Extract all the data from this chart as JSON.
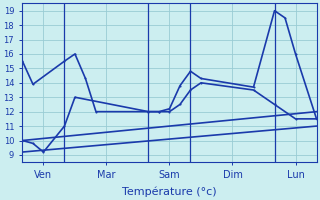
{
  "background_color": "#cceef0",
  "grid_color": "#99ccd4",
  "line_color": "#1a3aab",
  "xlabel": "Température (°c)",
  "ylim": [
    8.5,
    19.5
  ],
  "yticks": [
    9,
    10,
    11,
    12,
    13,
    14,
    15,
    16,
    17,
    18,
    19
  ],
  "xlim": [
    0,
    28
  ],
  "day_lines": [
    4,
    12,
    16,
    24
  ],
  "xtick_positions": [
    2,
    8,
    14,
    20,
    26
  ],
  "xtick_labels": [
    "Ven",
    "Mar",
    "Sam",
    "Dim",
    "Lun"
  ],
  "series": [
    {
      "x": [
        0,
        1,
        4,
        5,
        6,
        7,
        12,
        13,
        14,
        15,
        16,
        17,
        22,
        24,
        25,
        26,
        28
      ],
      "y": [
        15.5,
        13.9,
        15.5,
        16.0,
        14.3,
        12.0,
        12.0,
        12.0,
        12.2,
        13.8,
        14.8,
        14.3,
        13.7,
        19.0,
        18.5,
        16.0,
        11.5
      ]
    },
    {
      "x": [
        0,
        1,
        2,
        4,
        5,
        12,
        13,
        14,
        15,
        16,
        17,
        22,
        24,
        26,
        28
      ],
      "y": [
        10.0,
        9.8,
        9.2,
        11.0,
        13.0,
        12.0,
        12.0,
        12.0,
        12.5,
        13.5,
        14.0,
        13.5,
        12.5,
        11.5,
        11.5
      ]
    },
    {
      "x": [
        0,
        28
      ],
      "y": [
        10.0,
        12.0
      ]
    },
    {
      "x": [
        0,
        28
      ],
      "y": [
        9.2,
        11.0
      ]
    }
  ]
}
